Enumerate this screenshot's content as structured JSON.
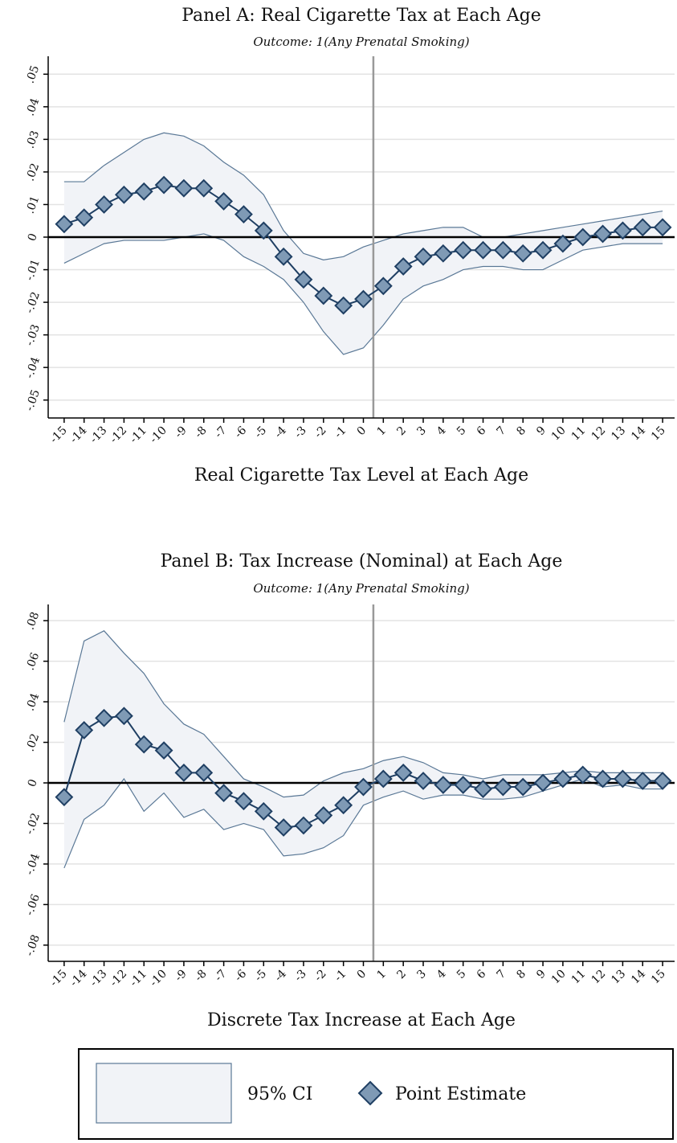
{
  "chart_data": [
    {
      "type": "line",
      "title": "Panel A: Real Cigarette Tax at Each Age",
      "subtitle": "Outcome: 1(Any Prenatal Smoking)",
      "xlabel": "Real Cigarette Tax Level at Each Age",
      "x": [
        -15,
        -14,
        -13,
        -12,
        -11,
        -10,
        -9,
        -8,
        -7,
        -6,
        -5,
        -4,
        -3,
        -2,
        -1,
        0,
        1,
        2,
        3,
        4,
        5,
        6,
        7,
        8,
        9,
        10,
        11,
        12,
        13,
        14,
        15
      ],
      "series": [
        {
          "color": "#1f3f63",
          "marker_fill": "#7f9ab5",
          "values": [
            0.004,
            0.006,
            0.01,
            0.013,
            0.014,
            0.016,
            0.015,
            0.015,
            0.011,
            0.007,
            0.002,
            -0.006,
            -0.013,
            -0.018,
            -0.021,
            -0.019,
            -0.015,
            -0.009,
            -0.006,
            -0.005,
            -0.004,
            -0.004,
            -0.004,
            -0.005,
            -0.004,
            -0.002,
            0,
            0.001,
            0.002,
            0.003,
            0.003
          ],
          "upper": [
            0.017,
            0.017,
            0.022,
            0.026,
            0.03,
            0.032,
            0.031,
            0.028,
            0.023,
            0.019,
            0.013,
            0.002,
            -0.005,
            -0.007,
            -0.006,
            -0.003,
            -0.001,
            0.001,
            0.002,
            0.003,
            0.003,
            0,
            0,
            0.001,
            0.002,
            0.003,
            0.004,
            0.005,
            0.006,
            0.007,
            0.008
          ],
          "lower": [
            -0.008,
            -0.005,
            -0.002,
            -0.001,
            -0.001,
            -0.001,
            0,
            0.001,
            -0.001,
            -0.006,
            -0.009,
            -0.013,
            -0.02,
            -0.029,
            -0.036,
            -0.034,
            -0.027,
            -0.019,
            -0.015,
            -0.013,
            -0.01,
            -0.009,
            -0.009,
            -0.01,
            -0.01,
            -0.007,
            -0.004,
            -0.003,
            -0.002,
            -0.002,
            -0.002
          ]
        }
      ],
      "band_color": "#f1f3f7",
      "band_edge": "#5a7896",
      "xlim": [
        -15.8,
        15.6
      ],
      "ylim": [
        -0.0555,
        0.0555
      ],
      "xticks": [
        -15,
        -14,
        -13,
        -12,
        -11,
        -10,
        -9,
        -8,
        -7,
        -6,
        -5,
        -4,
        -3,
        -2,
        -1,
        0,
        1,
        2,
        3,
        4,
        5,
        6,
        7,
        8,
        9,
        10,
        11,
        12,
        13,
        14,
        15
      ],
      "yticks": [
        {
          "value": -0.05,
          "label": "-.05"
        },
        {
          "value": -0.04,
          "label": "-.04"
        },
        {
          "value": -0.03,
          "label": "-.03"
        },
        {
          "value": -0.02,
          "label": "-.02"
        },
        {
          "value": -0.01,
          "label": "-.01"
        },
        0,
        {
          "value": 0.01,
          "label": ".01"
        },
        {
          "value": 0.02,
          "label": ".02"
        },
        {
          "value": 0.03,
          "label": ".03"
        },
        {
          "value": 0.04,
          "label": ".04"
        },
        {
          "value": 0.05,
          "label": ".05"
        }
      ],
      "grid": true,
      "hline": 0,
      "vline": 0.5
    },
    {
      "type": "line",
      "title": "Panel B: Tax Increase (Nominal) at Each Age",
      "subtitle": "Outcome: 1(Any Prenatal Smoking)",
      "xlabel": "Discrete Tax Increase at Each Age",
      "x": [
        -15,
        -14,
        -13,
        -12,
        -11,
        -10,
        -9,
        -8,
        -7,
        -6,
        -5,
        -4,
        -3,
        -2,
        -1,
        0,
        1,
        2,
        3,
        4,
        5,
        6,
        7,
        8,
        9,
        10,
        11,
        12,
        13,
        14,
        15
      ],
      "series": [
        {
          "color": "#1f3f63",
          "marker_fill": "#7f9ab5",
          "values": [
            -0.007,
            0.026,
            0.032,
            0.033,
            0.019,
            0.016,
            0.005,
            0.005,
            -0.005,
            -0.009,
            -0.014,
            -0.022,
            -0.021,
            -0.016,
            -0.011,
            -0.002,
            0.002,
            0.005,
            0.001,
            -0.001,
            -0.001,
            -0.003,
            -0.002,
            -0.002,
            0,
            0.002,
            0.004,
            0.002,
            0.002,
            0.001,
            0.001
          ],
          "upper": [
            0.03,
            0.07,
            0.075,
            0.064,
            0.054,
            0.039,
            0.029,
            0.024,
            0.013,
            0.002,
            -0.002,
            -0.007,
            -0.006,
            0.001,
            0.005,
            0.007,
            0.011,
            0.013,
            0.01,
            0.005,
            0.004,
            0.002,
            0.004,
            0.004,
            0.004,
            0.005,
            0.006,
            0.005,
            0.005,
            0.005,
            0.005
          ],
          "lower": [
            -0.042,
            -0.018,
            -0.011,
            0.002,
            -0.014,
            -0.005,
            -0.017,
            -0.013,
            -0.023,
            -0.02,
            -0.023,
            -0.036,
            -0.035,
            -0.032,
            -0.026,
            -0.011,
            -0.007,
            -0.004,
            -0.008,
            -0.006,
            -0.006,
            -0.008,
            -0.008,
            -0.007,
            -0.004,
            -0.001,
            0.002,
            -0.002,
            -0.001,
            -0.003,
            -0.003
          ]
        }
      ],
      "band_color": "#f1f3f7",
      "band_edge": "#5a7896",
      "xlim": [
        -15.8,
        15.6
      ],
      "ylim": [
        -0.088,
        0.088
      ],
      "xticks": [
        -15,
        -14,
        -13,
        -12,
        -11,
        -10,
        -9,
        -8,
        -7,
        -6,
        -5,
        -4,
        -3,
        -2,
        -1,
        0,
        1,
        2,
        3,
        4,
        5,
        6,
        7,
        8,
        9,
        10,
        11,
        12,
        13,
        14,
        15
      ],
      "yticks": [
        {
          "value": -0.08,
          "label": "-.08"
        },
        {
          "value": -0.06,
          "label": "-.06"
        },
        {
          "value": -0.04,
          "label": "-.04"
        },
        {
          "value": -0.02,
          "label": "-.02"
        },
        0,
        {
          "value": 0.02,
          "label": ".02"
        },
        {
          "value": 0.04,
          "label": ".04"
        },
        {
          "value": 0.06,
          "label": ".06"
        },
        {
          "value": 0.08,
          "label": ".08"
        }
      ],
      "grid": true,
      "hline": 0,
      "vline": 0.5
    }
  ],
  "legend": {
    "items": [
      {
        "label": "95% CI"
      },
      {
        "label": "Point Estimate"
      }
    ]
  }
}
